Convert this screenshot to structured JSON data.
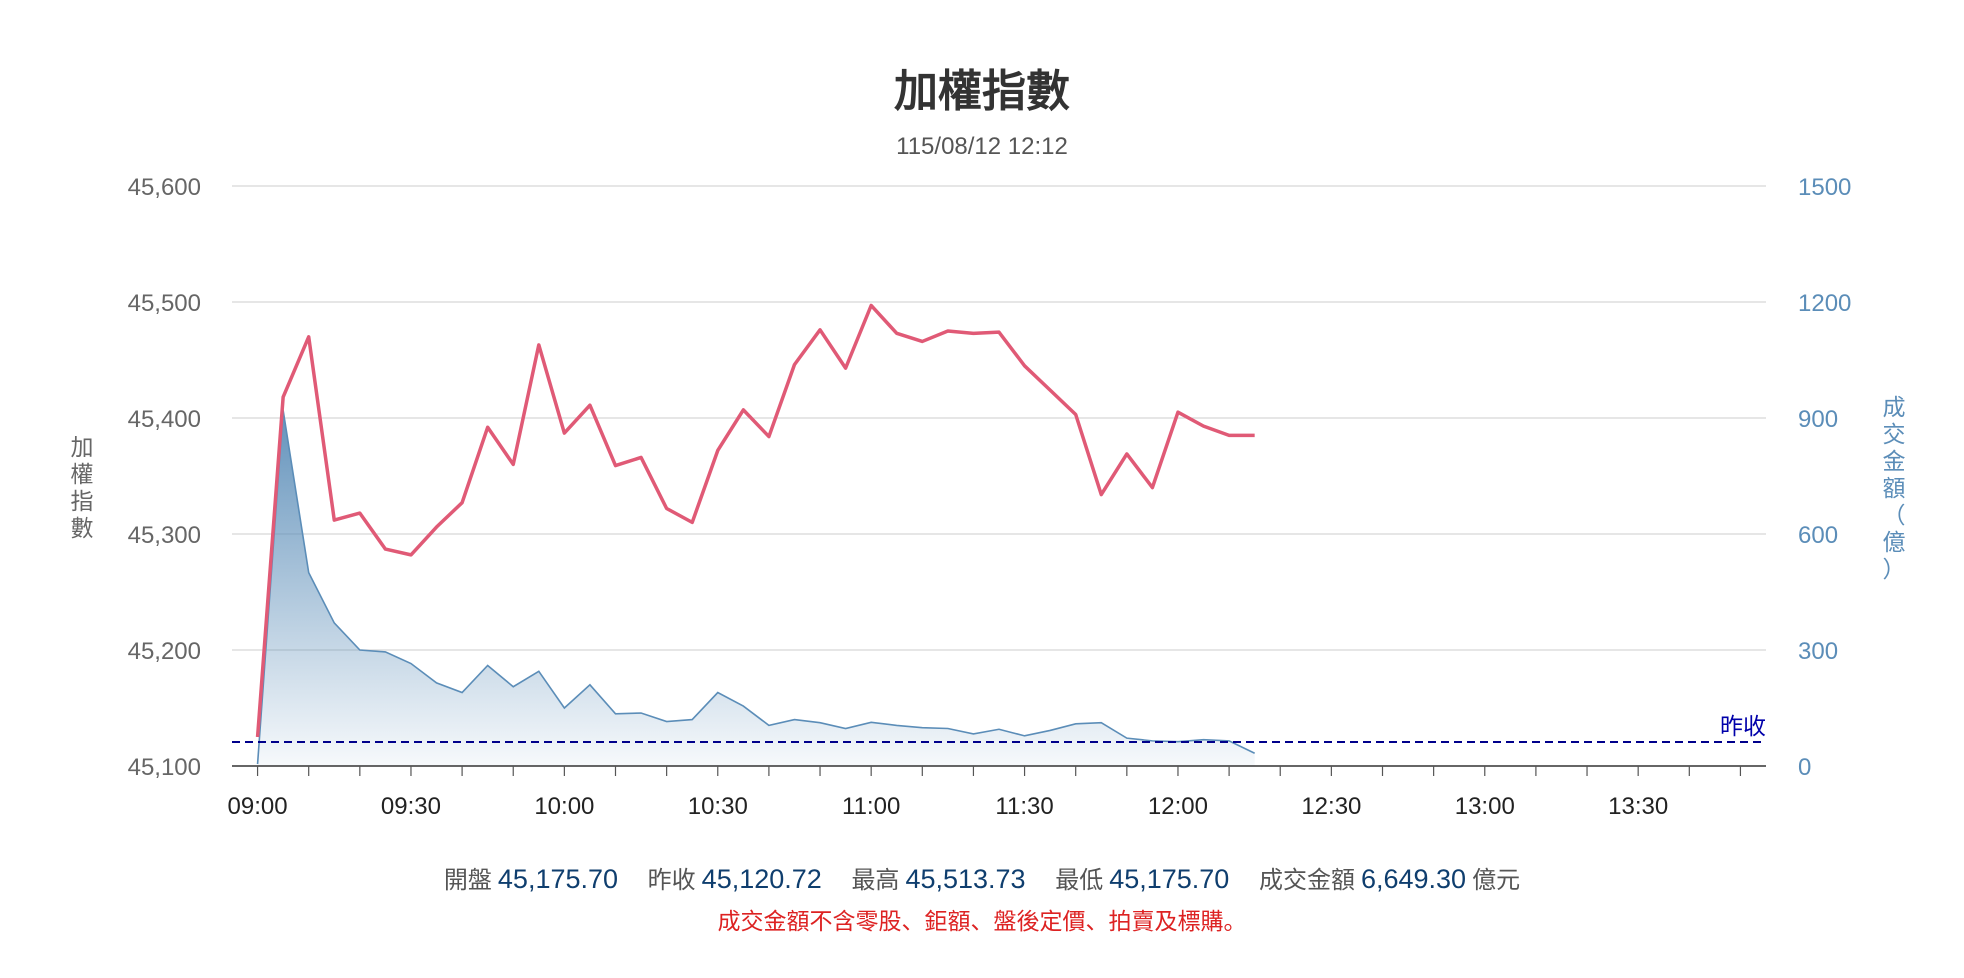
{
  "chart_data": {
    "type": "line",
    "title": "加權指數",
    "subtitle": "115/08/12 12:12",
    "y_left": {
      "label": "加權指數",
      "range": [
        45100,
        45600
      ],
      "ticks": [
        "45,100",
        "45,200",
        "45,300",
        "45,400",
        "45,500",
        "45,600"
      ],
      "tick_values": [
        45100,
        45200,
        45300,
        45400,
        45500,
        45600
      ]
    },
    "y_right": {
      "label": "成交金額（億）",
      "range": [
        0,
        1500
      ],
      "ticks": [
        "0",
        "300",
        "600",
        "900",
        "1200",
        "1500"
      ],
      "tick_values": [
        0,
        300,
        600,
        900,
        1200,
        1500
      ]
    },
    "x_axis": {
      "range": [
        "09:00",
        "13:50"
      ],
      "labels": [
        "09:00",
        "09:30",
        "10:00",
        "10:30",
        "11:00",
        "11:30",
        "12:00",
        "12:30",
        "13:00",
        "13:30"
      ]
    },
    "series": [
      {
        "axis": "left",
        "style": "line",
        "color": "#e05a76",
        "x": [
          "09:00",
          "09:05",
          "09:10",
          "09:15",
          "09:20",
          "09:25",
          "09:30",
          "09:35",
          "09:40",
          "09:45",
          "09:50",
          "09:55",
          "10:00",
          "10:05",
          "10:10",
          "10:15",
          "10:20",
          "10:25",
          "10:30",
          "10:35",
          "10:40",
          "10:45",
          "10:50",
          "10:55",
          "11:00",
          "11:05",
          "11:10",
          "11:15",
          "11:20",
          "11:25",
          "11:30",
          "11:35",
          "11:40",
          "11:45",
          "11:50",
          "11:55",
          "12:00",
          "12:05",
          "12:10",
          "12:15"
        ],
        "values": [
          45125,
          45418,
          45470,
          45312,
          45318,
          45287,
          45282,
          45306,
          45327,
          45392,
          45360,
          45463,
          45387,
          45411,
          45359,
          45366,
          45322,
          45310,
          45372,
          45407,
          45384,
          45446,
          45476,
          45443,
          45497,
          45473,
          45466,
          45475,
          45473,
          45474,
          45445,
          45424,
          45403,
          45334,
          45369,
          45340,
          45405,
          45393,
          45385,
          45385
        ]
      },
      {
        "axis": "right",
        "style": "area",
        "color": "#5b8db8",
        "x": [
          "09:00",
          "09:05",
          "09:10",
          "09:15",
          "09:20",
          "09:25",
          "09:30",
          "09:35",
          "09:40",
          "09:45",
          "09:50",
          "09:55",
          "10:00",
          "10:05",
          "10:10",
          "10:15",
          "10:20",
          "10:25",
          "10:30",
          "10:35",
          "10:40",
          "10:45",
          "10:50",
          "10:55",
          "11:00",
          "11:05",
          "11:10",
          "11:15",
          "11:20",
          "11:25",
          "11:30",
          "11:35",
          "11:40",
          "11:45",
          "11:50",
          "11:55",
          "12:00",
          "12:05",
          "12:10",
          "12:15"
        ],
        "values": [
          5,
          920,
          500,
          370,
          300,
          295,
          265,
          215,
          190,
          260,
          205,
          245,
          150,
          210,
          135,
          137,
          115,
          120,
          190,
          155,
          105,
          120,
          112,
          97,
          113,
          105,
          99,
          97,
          83,
          95,
          78,
          92,
          109,
          112,
          72,
          65,
          63,
          68,
          65,
          33
        ]
      }
    ],
    "reference_line": {
      "label": "昨收",
      "value": 45120.72,
      "color": "#00008b"
    },
    "grid": true
  },
  "footer": {
    "open_label": "開盤",
    "open_value": "45,175.70",
    "prev_label": "昨收",
    "prev_value": "45,120.72",
    "high_label": "最高",
    "high_value": "45,513.73",
    "low_label": "最低",
    "low_value": "45,175.70",
    "volume_label": "成交金額",
    "volume_value": "6,649.30",
    "volume_unit": "億元",
    "note": "成交金額不含零股、鉅額、盤後定價、拍賣及標購。"
  }
}
